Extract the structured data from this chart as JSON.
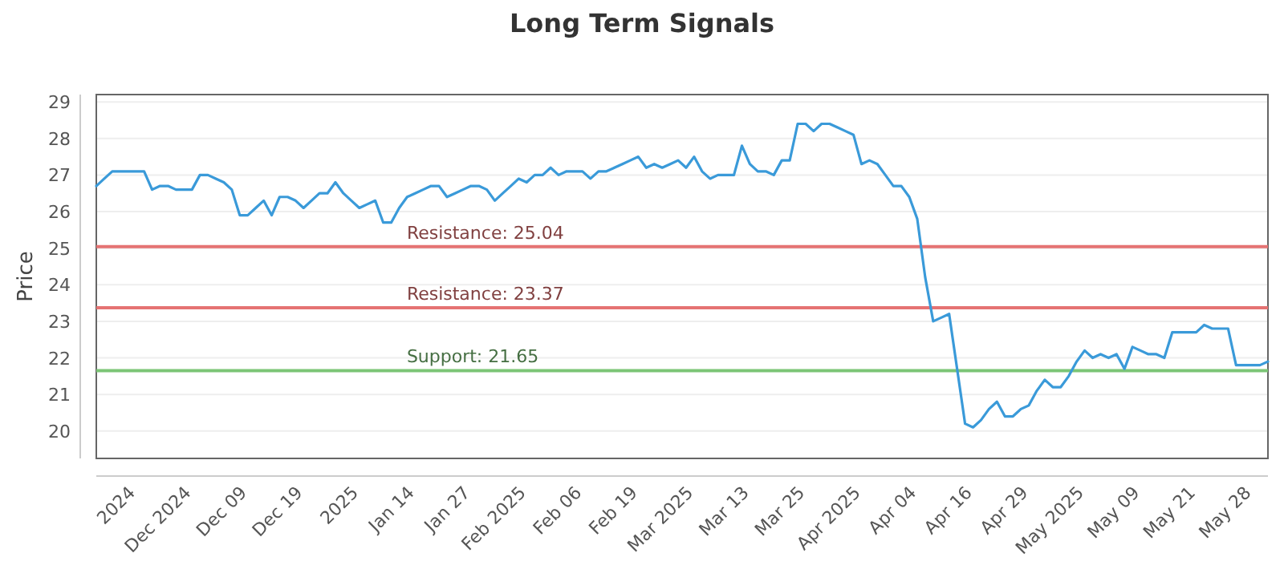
{
  "chart_data": {
    "type": "line",
    "title": "Long Term Signals",
    "ylabel": "Price",
    "ylim": [
      19.25,
      29.2
    ],
    "categories": [
      null,
      null,
      null,
      null,
      null,
      "2024",
      null,
      null,
      null,
      null,
      null,
      null,
      "Dec 2024",
      null,
      null,
      null,
      null,
      null,
      null,
      "Dec 09",
      null,
      null,
      null,
      null,
      null,
      null,
      "Dec 19",
      null,
      null,
      null,
      null,
      null,
      null,
      "2025",
      null,
      null,
      null,
      null,
      null,
      null,
      "Jan 14",
      null,
      null,
      null,
      null,
      null,
      null,
      "Jan 27",
      null,
      null,
      null,
      null,
      null,
      null,
      "Feb 2025",
      null,
      null,
      null,
      null,
      null,
      null,
      "Feb 06",
      null,
      null,
      null,
      null,
      null,
      null,
      "Feb 19",
      null,
      null,
      null,
      null,
      null,
      null,
      "Mar 2025",
      null,
      null,
      null,
      null,
      null,
      null,
      "Mar 13",
      null,
      null,
      null,
      null,
      null,
      null,
      "Mar 25",
      null,
      null,
      null,
      null,
      null,
      null,
      "Apr 2025",
      null,
      null,
      null,
      null,
      null,
      null,
      "Apr 04",
      null,
      null,
      null,
      null,
      null,
      null,
      "Apr 16",
      null,
      null,
      null,
      null,
      null,
      null,
      "Apr 29",
      null,
      null,
      null,
      null,
      null,
      null,
      "May 2025",
      null,
      null,
      null,
      null,
      null,
      null,
      "May 09",
      null,
      null,
      null,
      null,
      null,
      null,
      "May 21",
      null,
      null,
      null,
      null,
      null,
      null,
      "May 28",
      null,
      null
    ],
    "yticks": [
      20,
      21,
      22,
      23,
      24,
      25,
      26,
      27,
      28,
      29
    ],
    "grid": "y",
    "marker": "none",
    "line_style": "solid",
    "series": [
      {
        "color": "#3a9ad9",
        "values": [
          26.7,
          26.9,
          27.1,
          27.1,
          27.1,
          27.1,
          27.1,
          26.6,
          26.7,
          26.7,
          26.6,
          26.6,
          26.6,
          27.0,
          27.0,
          26.9,
          26.8,
          26.6,
          25.9,
          25.9,
          26.1,
          26.3,
          25.9,
          26.4,
          26.4,
          26.3,
          26.1,
          26.3,
          26.5,
          26.5,
          26.8,
          26.5,
          26.3,
          26.1,
          26.2,
          26.3,
          25.7,
          25.7,
          26.1,
          26.4,
          26.5,
          26.6,
          26.7,
          26.7,
          26.4,
          26.5,
          26.6,
          26.7,
          26.7,
          26.6,
          26.3,
          26.5,
          26.7,
          26.9,
          26.8,
          27.0,
          27.0,
          27.2,
          27.0,
          27.1,
          27.1,
          27.1,
          26.9,
          27.1,
          27.1,
          27.2,
          27.3,
          27.4,
          27.5,
          27.2,
          27.3,
          27.2,
          27.3,
          27.4,
          27.2,
          27.5,
          27.1,
          26.9,
          27.0,
          27.0,
          27.0,
          27.8,
          27.3,
          27.1,
          27.1,
          27.0,
          27.4,
          27.4,
          28.4,
          28.4,
          28.2,
          28.4,
          28.4,
          28.3,
          28.2,
          28.1,
          27.3,
          27.4,
          27.3,
          27.0,
          26.7,
          26.7,
          26.4,
          25.8,
          24.2,
          23.0,
          23.1,
          23.2,
          21.7,
          20.2,
          20.1,
          20.3,
          20.6,
          20.8,
          20.4,
          20.4,
          20.6,
          20.7,
          21.1,
          21.4,
          21.2,
          21.2,
          21.5,
          21.9,
          22.2,
          22.0,
          22.1,
          22.0,
          22.1,
          21.7,
          22.3,
          22.2,
          22.1,
          22.1,
          22.0,
          22.7,
          22.7,
          22.7,
          22.7,
          22.9,
          22.8,
          22.8,
          22.8,
          21.8,
          21.8,
          21.8,
          21.8,
          21.9
        ]
      }
    ],
    "ref_lines": [
      {
        "axis": "y",
        "value": 25.04,
        "label": "Resistance: 25.04",
        "color": "#e57373"
      },
      {
        "axis": "y",
        "value": 23.37,
        "label": "Resistance: 23.37",
        "color": "#e57373"
      },
      {
        "axis": "y",
        "value": 21.65,
        "label": "Support: 21.65",
        "color": "#7cc576"
      }
    ]
  }
}
